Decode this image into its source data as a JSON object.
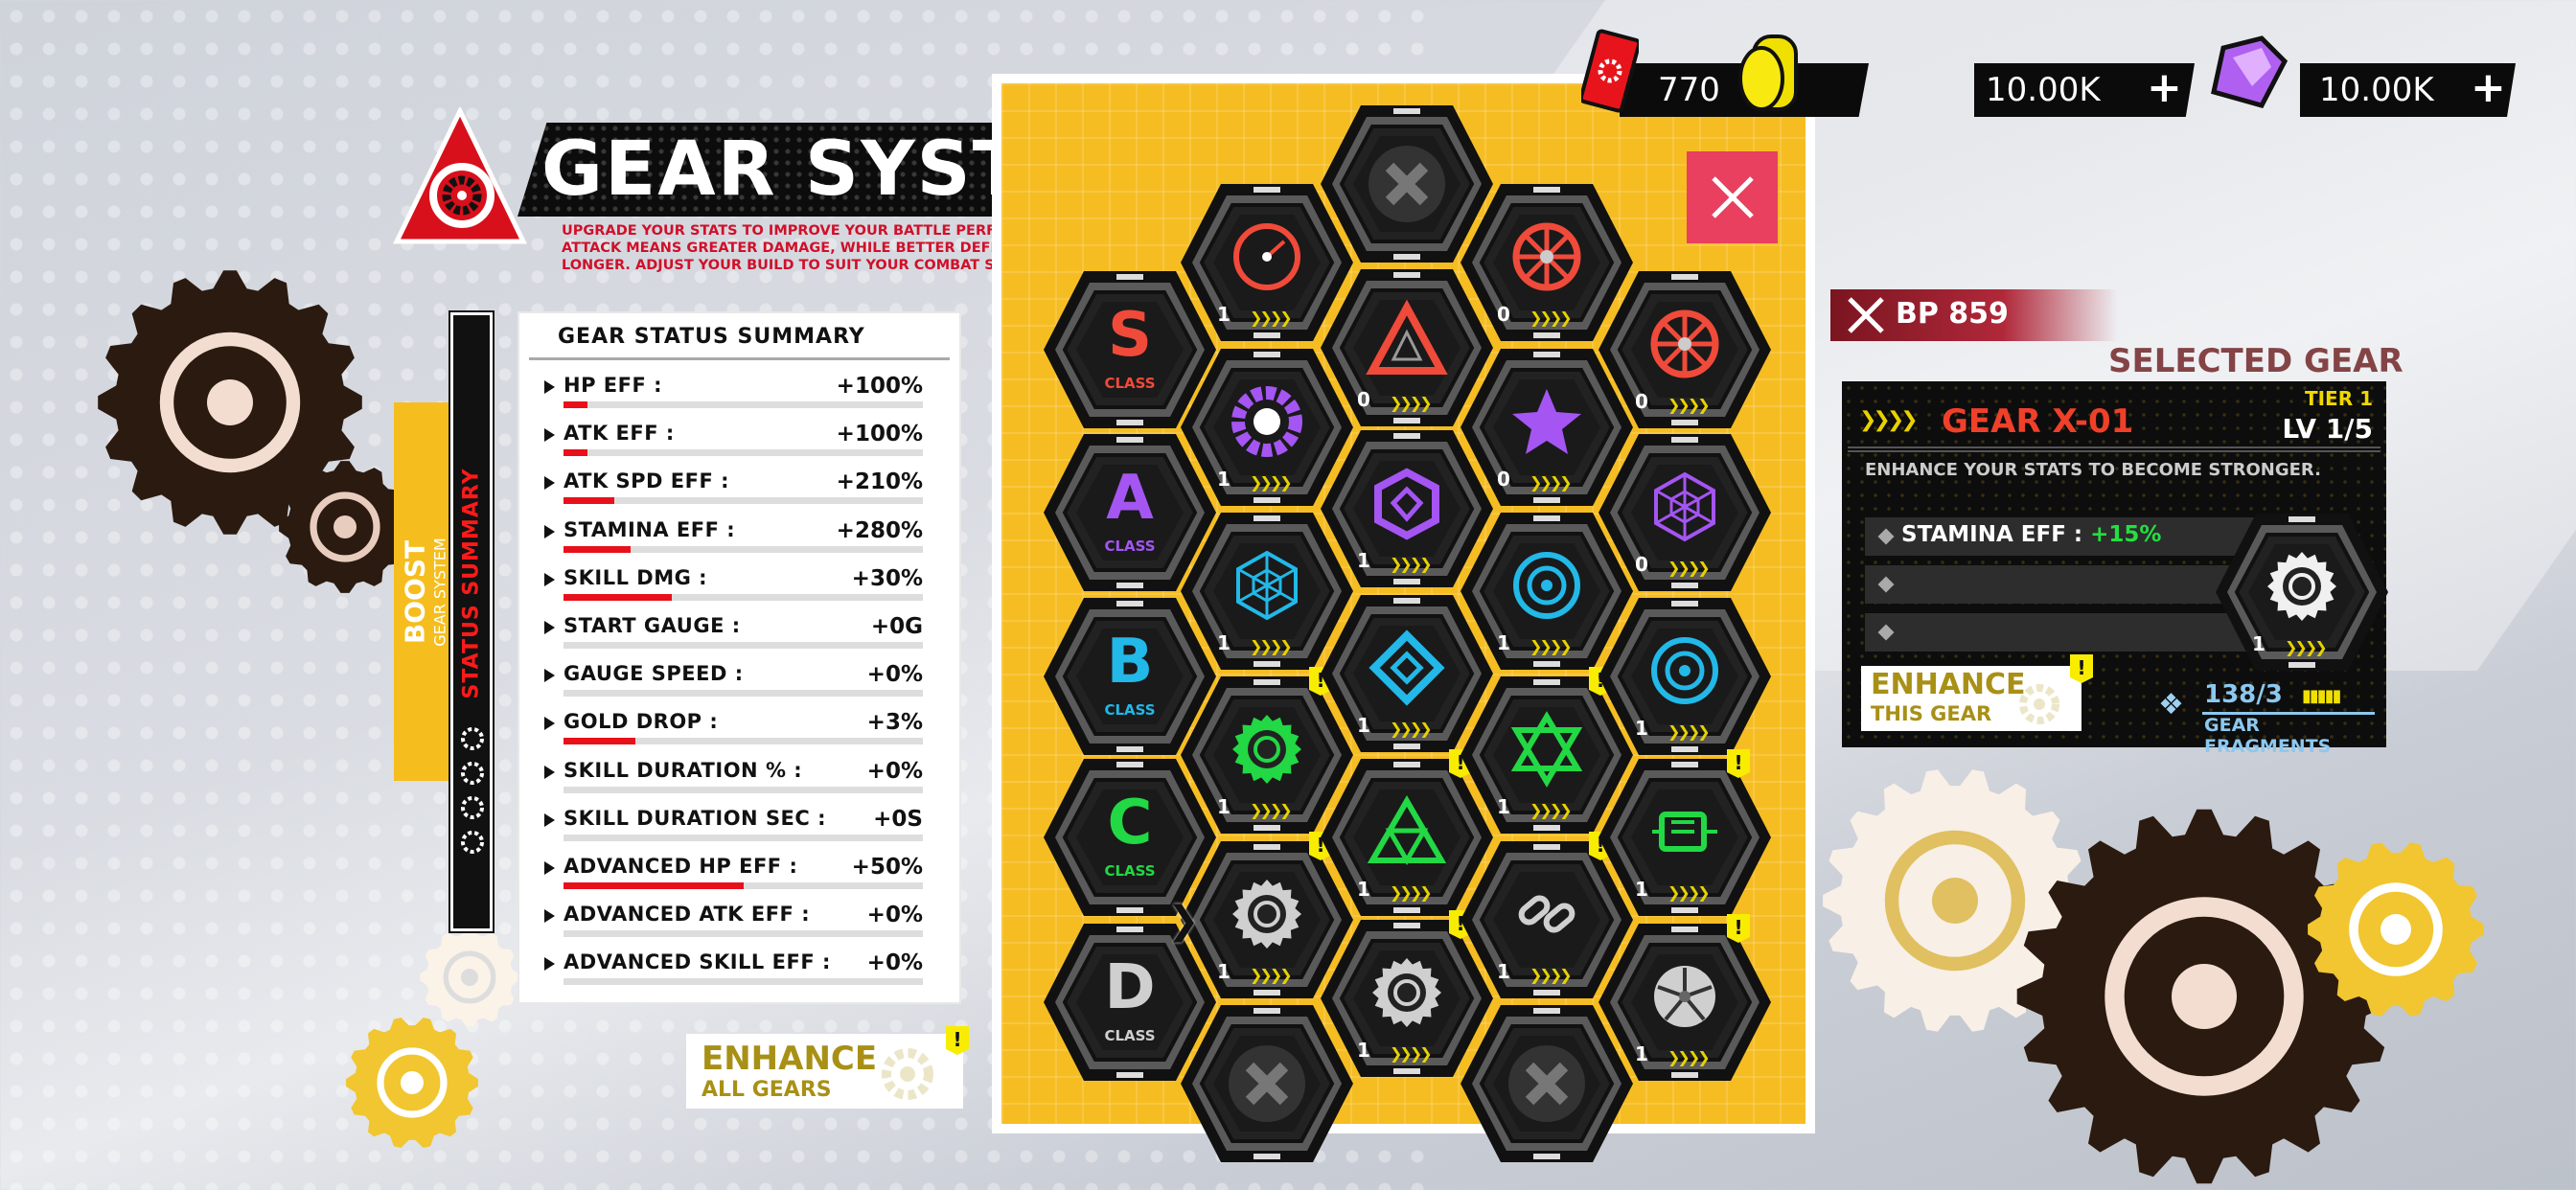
{
  "header": {
    "title": "GEAR SYSTEM",
    "description": "UPGRADE YOUR STATS TO IMPROVE YOUR BATTLE PERFORMANCE. HIGHER ATTACK MEANS GREATER DAMAGE, WHILE BETTER DEFENSE KEEPS YOU ALIVE LONGER. ADJUST YOUR BUILD TO SUIT YOUR COMBAT STYLE!"
  },
  "currency": [
    {
      "icon": "ticket-icon",
      "value": "770",
      "has_plus": false
    },
    {
      "icon": "gold-coin-icon",
      "value": "10.00K",
      "has_plus": true,
      "plus": "+"
    },
    {
      "icon": "gem-icon",
      "value": "10.00K",
      "has_plus": true,
      "plus": "+"
    }
  ],
  "side_tabs": {
    "boost": "BOOST",
    "boost_sub": "GEAR SYSTEM",
    "status": "STATUS SUMMARY"
  },
  "summary": {
    "title": "GEAR STATUS SUMMARY",
    "rows": [
      {
        "label": "HP EFF :",
        "value": "+100%",
        "fill": 6.7
      },
      {
        "label": "ATK EFF :",
        "value": "+100%",
        "fill": 6.7
      },
      {
        "label": "ATK SPD EFF :",
        "value": "+210%",
        "fill": 14
      },
      {
        "label": "STAMINA EFF :",
        "value": "+280%",
        "fill": 18.7
      },
      {
        "label": "SKILL DMG :",
        "value": "+30%",
        "fill": 30
      },
      {
        "label": "START GAUGE :",
        "value": "+0G",
        "fill": 0
      },
      {
        "label": "GAUGE SPEED :",
        "value": "+0%",
        "fill": 0
      },
      {
        "label": "GOLD DROP :",
        "value": "+3%",
        "fill": 20
      },
      {
        "label": "SKILL DURATION % :",
        "value": "+0%",
        "fill": 0
      },
      {
        "label": "SKILL DURATION SEC :",
        "value": "+0S",
        "fill": 0
      },
      {
        "label": "ADVANCED HP EFF :",
        "value": "+50%",
        "fill": 50
      },
      {
        "label": "ADVANCED ATK EFF :",
        "value": "+0%",
        "fill": 0
      },
      {
        "label": "ADVANCED SKILL EFF :",
        "value": "+0%",
        "fill": 0
      }
    ]
  },
  "enhance_all": {
    "line1": "ENHANCE",
    "line2": "ALL GEARS",
    "alert": "!"
  },
  "colors": {
    "S": "#f04a3a",
    "A": "#a455f2",
    "B": "#22b8e8",
    "C": "#22d844",
    "D": "#cfcfcf",
    "panel": "#f6bd22",
    "close": "#e8405e",
    "alert": "#f8ec00"
  },
  "classes": [
    {
      "letter": "S",
      "label": "CLASS"
    },
    {
      "letter": "A",
      "label": "CLASS"
    },
    {
      "letter": "B",
      "label": "CLASS"
    },
    {
      "letter": "C",
      "label": "CLASS"
    },
    {
      "letter": "D",
      "label": "CLASS"
    }
  ],
  "gear_columns": [
    [
      {
        "icon": "dial-icon",
        "cls": "S",
        "level": "1"
      },
      {
        "icon": "ring-icon",
        "cls": "A",
        "level": "1"
      },
      {
        "icon": "web-icon",
        "cls": "B",
        "level": "1"
      },
      {
        "icon": "swirl-gear-icon",
        "cls": "C",
        "level": "1",
        "alert": "!"
      },
      {
        "icon": "gear-icon",
        "cls": "D",
        "level": "1",
        "alert": "!",
        "selected": true
      },
      {
        "locked": true,
        "icon": "locked-icon"
      }
    ],
    [
      {
        "locked": true,
        "icon": "locked-icon"
      },
      {
        "icon": "triangle-icon",
        "cls": "S",
        "level": "0"
      },
      {
        "icon": "hexagon-icon",
        "cls": "A",
        "level": "1"
      },
      {
        "icon": "knot-icon",
        "cls": "B",
        "level": "1"
      },
      {
        "icon": "triangles-icon",
        "cls": "C",
        "level": "1",
        "alert": "!"
      },
      {
        "icon": "dotted-gear-icon",
        "cls": "D",
        "level": "1",
        "alert": "!"
      }
    ],
    [
      {
        "icon": "helm-wheel-icon",
        "cls": "S",
        "level": "0"
      },
      {
        "icon": "star-icon",
        "cls": "A",
        "level": "0"
      },
      {
        "icon": "bearing-icon",
        "cls": "B",
        "level": "1"
      },
      {
        "icon": "hexagram-icon",
        "cls": "C",
        "level": "1",
        "alert": "!"
      },
      {
        "icon": "chain-icon",
        "cls": "D",
        "level": "1",
        "alert": "!"
      },
      {
        "locked": true,
        "icon": "locked-icon"
      }
    ],
    [
      {
        "icon": "radiation-icon",
        "cls": "S",
        "level": "0"
      },
      {
        "icon": "spider-web-icon",
        "cls": "A",
        "level": "0"
      },
      {
        "icon": "target-icon",
        "cls": "B",
        "level": "1"
      },
      {
        "icon": "motor-icon",
        "cls": "C",
        "level": "1",
        "alert": "!"
      },
      {
        "icon": "turbine-icon",
        "cls": "D",
        "level": "1",
        "alert": "!"
      }
    ]
  ],
  "selected": {
    "bp": "BP 859",
    "watermark": "SELECTED GEAR",
    "name": "GEAR X-01",
    "tier": "TIER 1",
    "level": "LV 1/5",
    "description": "ENHANCE YOUR STATS TO BECOME STRONGER.",
    "stats": [
      {
        "label": "STAMINA EFF : ",
        "value": "+15%"
      },
      {
        "label": "",
        "value": ""
      },
      {
        "label": "",
        "value": ""
      }
    ],
    "gear_level": "1",
    "enhance": {
      "line1": "ENHANCE",
      "line2": "THIS GEAR",
      "alert": "!"
    },
    "fragments": {
      "count": "138/3",
      "label": "GEAR FRAGMENTS"
    }
  }
}
